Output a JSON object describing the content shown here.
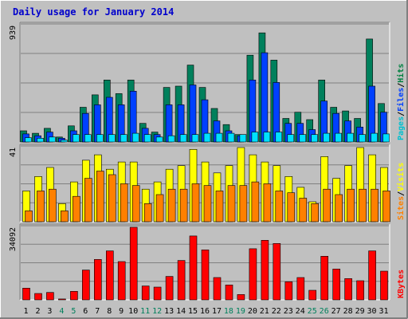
{
  "chart_data": {
    "type": "bar",
    "title": "Daily usage for January 2014",
    "x": [
      "1",
      "2",
      "3",
      "4",
      "5",
      "6",
      "7",
      "8",
      "9",
      "10",
      "11",
      "12",
      "13",
      "14",
      "15",
      "16",
      "17",
      "18",
      "19",
      "20",
      "21",
      "22",
      "23",
      "24",
      "25",
      "26",
      "27",
      "28",
      "29",
      "30",
      "31"
    ],
    "weekend_days": [
      "4",
      "5",
      "11",
      "12",
      "18",
      "19",
      "25",
      "26"
    ],
    "panels": [
      {
        "id": "hits",
        "ymax": 939,
        "ymax_label": "939",
        "grid": true,
        "legend": [
          {
            "label": "Pages",
            "color": "#00c0d0"
          },
          {
            "label": "/",
            "color": "#000000"
          },
          {
            "label": "Files",
            "color": "#0040ff"
          },
          {
            "label": "/",
            "color": "#000000"
          },
          {
            "label": "Hits",
            "color": "#008040"
          }
        ],
        "series": [
          {
            "name": "Hits",
            "color": "#00805c",
            "values": [
              90,
              70,
              110,
              40,
              130,
              280,
              380,
              500,
              390,
              500,
              150,
              80,
              440,
              450,
              620,
              440,
              270,
              140,
              60,
              700,
              880,
              660,
              190,
              240,
              180,
              500,
              280,
              250,
              190,
              830,
              310
            ]
          },
          {
            "name": "Files",
            "color": "#0040ff",
            "values": [
              65,
              50,
              80,
              30,
              90,
              230,
              300,
              360,
              300,
              410,
              110,
              60,
              300,
              300,
              460,
              340,
              170,
              90,
              50,
              500,
              720,
              480,
              150,
              150,
              100,
              330,
              230,
              170,
              120,
              450,
              240
            ]
          },
          {
            "name": "Pages",
            "color": "#00e0ff",
            "values": [
              35,
              30,
              40,
              15,
              60,
              60,
              60,
              60,
              60,
              70,
              60,
              40,
              50,
              60,
              60,
              70,
              70,
              70,
              60,
              80,
              80,
              80,
              60,
              60,
              60,
              70,
              70,
              70,
              60,
              70,
              65
            ]
          }
        ]
      },
      {
        "id": "visits",
        "ymax": 41,
        "ymax_label": "41",
        "grid": true,
        "legend": [
          {
            "label": "Sites",
            "color": "#ff8000"
          },
          {
            "label": "/",
            "color": "#000000"
          },
          {
            "label": "Visits",
            "color": "#ffff00"
          }
        ],
        "series": [
          {
            "name": "Visits",
            "color": "#ffff00",
            "values": [
              17,
              25,
              30,
              10,
              22,
              34,
              37,
              29,
              33,
              33,
              18,
              22,
              29,
              31,
              40,
              33,
              27,
              31,
              41,
              37,
              33,
              31,
              25,
              19,
              11,
              36,
              24,
              31,
              41,
              37,
              30
            ]
          },
          {
            "name": "Sites",
            "color": "#ff8000",
            "values": [
              6,
              17,
              18,
              6,
              14,
              24,
              28,
              26,
              21,
              20,
              10,
              15,
              18,
              18,
              21,
              20,
              17,
              20,
              20,
              22,
              21,
              17,
              16,
              13,
              10,
              18,
              15,
              18,
              18,
              18,
              17
            ]
          }
        ]
      },
      {
        "id": "kbytes",
        "ymax": 34092,
        "ymax_label": "34092",
        "grid": true,
        "legend": [
          {
            "label": "KBytes",
            "color": "#ff0000"
          }
        ],
        "series": [
          {
            "name": "KBytes",
            "color": "#ff0000",
            "values": [
              5500,
              3000,
              3500,
              400,
              4000,
              14000,
              19000,
              23000,
              18000,
              34092,
              6500,
              6000,
              11000,
              18500,
              30000,
              23500,
              10500,
              7000,
              2500,
              24000,
              28000,
              26500,
              8500,
              10500,
              4500,
              20500,
              14500,
              10000,
              9000,
              23000,
              13500
            ]
          }
        ]
      }
    ]
  }
}
